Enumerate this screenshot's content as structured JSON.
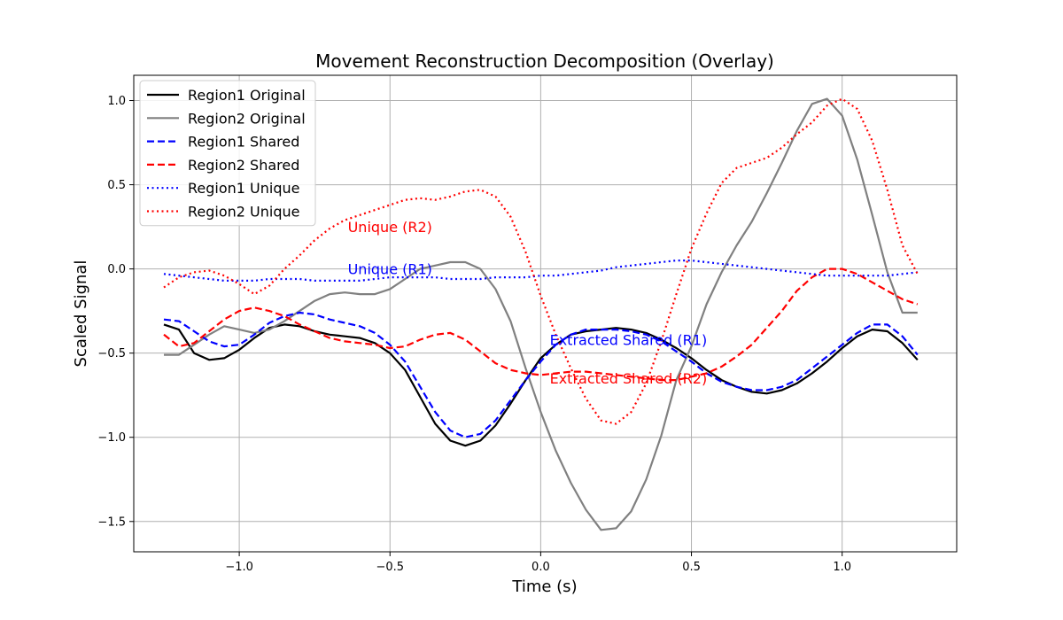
{
  "chart_data": {
    "type": "line",
    "title": "Movement Reconstruction Decomposition (Overlay)",
    "xlabel": "Time (s)",
    "ylabel": "Scaled Signal",
    "xlim": [
      -1.35,
      1.38
    ],
    "ylim": [
      -1.68,
      1.15
    ],
    "xticks": [
      -1.0,
      -0.5,
      0.0,
      0.5,
      1.0
    ],
    "xtick_labels": [
      "−1.0",
      "−0.5",
      "0.0",
      "0.5",
      "1.0"
    ],
    "yticks": [
      -1.5,
      -1.0,
      -0.5,
      0.0,
      0.5,
      1.0
    ],
    "ytick_labels": [
      "−1.5",
      "−1.0",
      "−0.5",
      "0.0",
      "0.5",
      "1.0"
    ],
    "grid": true,
    "legend_position": "top-left",
    "x": [
      -1.25,
      -1.2,
      -1.15,
      -1.1,
      -1.05,
      -1.0,
      -0.95,
      -0.9,
      -0.85,
      -0.8,
      -0.75,
      -0.7,
      -0.65,
      -0.6,
      -0.55,
      -0.5,
      -0.45,
      -0.4,
      -0.35,
      -0.3,
      -0.25,
      -0.2,
      -0.15,
      -0.1,
      -0.05,
      0.0,
      0.05,
      0.1,
      0.15,
      0.2,
      0.25,
      0.3,
      0.35,
      0.4,
      0.45,
      0.5,
      0.55,
      0.6,
      0.65,
      0.7,
      0.75,
      0.8,
      0.85,
      0.9,
      0.95,
      1.0,
      1.05,
      1.1,
      1.15,
      1.2,
      1.25
    ],
    "series": [
      {
        "name": "Region1 Original",
        "color": "#000000",
        "style": "solid",
        "values": [
          -0.33,
          -0.36,
          -0.5,
          -0.54,
          -0.53,
          -0.48,
          -0.41,
          -0.35,
          -0.33,
          -0.34,
          -0.37,
          -0.39,
          -0.4,
          -0.41,
          -0.44,
          -0.5,
          -0.6,
          -0.76,
          -0.92,
          -1.02,
          -1.05,
          -1.02,
          -0.93,
          -0.8,
          -0.66,
          -0.53,
          -0.45,
          -0.39,
          -0.37,
          -0.36,
          -0.35,
          -0.36,
          -0.38,
          -0.42,
          -0.47,
          -0.53,
          -0.6,
          -0.66,
          -0.7,
          -0.73,
          -0.74,
          -0.72,
          -0.68,
          -0.62,
          -0.55,
          -0.47,
          -0.4,
          -0.36,
          -0.37,
          -0.44,
          -0.54
        ]
      },
      {
        "name": "Region2 Original",
        "color": "#808080",
        "style": "solid",
        "values": [
          -0.51,
          -0.51,
          -0.45,
          -0.39,
          -0.34,
          -0.36,
          -0.38,
          -0.36,
          -0.31,
          -0.25,
          -0.19,
          -0.15,
          -0.14,
          -0.15,
          -0.15,
          -0.12,
          -0.06,
          0.0,
          0.02,
          0.04,
          0.04,
          0.0,
          -0.12,
          -0.31,
          -0.59,
          -0.85,
          -1.08,
          -1.27,
          -1.43,
          -1.55,
          -1.54,
          -1.44,
          -1.25,
          -0.99,
          -0.66,
          -0.46,
          -0.21,
          -0.02,
          0.14,
          0.28,
          0.45,
          0.63,
          0.82,
          0.98,
          1.01,
          0.91,
          0.65,
          0.32,
          -0.02,
          -0.26,
          -0.26
        ]
      },
      {
        "name": "Region1 Shared",
        "color": "#0000ff",
        "style": "dashed",
        "values": [
          -0.3,
          -0.31,
          -0.37,
          -0.43,
          -0.46,
          -0.45,
          -0.39,
          -0.32,
          -0.28,
          -0.26,
          -0.27,
          -0.3,
          -0.32,
          -0.34,
          -0.38,
          -0.45,
          -0.55,
          -0.7,
          -0.85,
          -0.96,
          -1.0,
          -0.98,
          -0.9,
          -0.78,
          -0.66,
          -0.55,
          -0.45,
          -0.39,
          -0.36,
          -0.36,
          -0.36,
          -0.37,
          -0.39,
          -0.43,
          -0.49,
          -0.55,
          -0.62,
          -0.67,
          -0.7,
          -0.72,
          -0.72,
          -0.7,
          -0.66,
          -0.59,
          -0.52,
          -0.45,
          -0.38,
          -0.33,
          -0.33,
          -0.4,
          -0.51
        ]
      },
      {
        "name": "Region2 Shared",
        "color": "#ff0000",
        "style": "dashed",
        "values": [
          -0.39,
          -0.46,
          -0.44,
          -0.37,
          -0.3,
          -0.25,
          -0.23,
          -0.25,
          -0.28,
          -0.33,
          -0.37,
          -0.41,
          -0.43,
          -0.44,
          -0.45,
          -0.47,
          -0.46,
          -0.42,
          -0.39,
          -0.38,
          -0.42,
          -0.49,
          -0.56,
          -0.6,
          -0.62,
          -0.63,
          -0.62,
          -0.61,
          -0.61,
          -0.62,
          -0.63,
          -0.64,
          -0.65,
          -0.66,
          -0.66,
          -0.64,
          -0.62,
          -0.58,
          -0.52,
          -0.45,
          -0.35,
          -0.25,
          -0.13,
          -0.05,
          0.0,
          0.0,
          -0.03,
          -0.08,
          -0.13,
          -0.18,
          -0.21
        ]
      },
      {
        "name": "Region1 Unique",
        "color": "#0000ff",
        "style": "dotted",
        "values": [
          -0.03,
          -0.04,
          -0.05,
          -0.06,
          -0.07,
          -0.07,
          -0.07,
          -0.06,
          -0.06,
          -0.06,
          -0.07,
          -0.07,
          -0.07,
          -0.07,
          -0.06,
          -0.05,
          -0.05,
          -0.05,
          -0.05,
          -0.06,
          -0.06,
          -0.06,
          -0.05,
          -0.05,
          -0.05,
          -0.04,
          -0.04,
          -0.03,
          -0.02,
          -0.01,
          0.01,
          0.02,
          0.03,
          0.04,
          0.05,
          0.05,
          0.04,
          0.03,
          0.02,
          0.01,
          0.0,
          -0.01,
          -0.02,
          -0.03,
          -0.04,
          -0.04,
          -0.04,
          -0.04,
          -0.04,
          -0.03,
          -0.02
        ]
      },
      {
        "name": "Region2 Unique",
        "color": "#ff0000",
        "style": "dotted",
        "values": [
          -0.11,
          -0.05,
          -0.02,
          -0.01,
          -0.04,
          -0.09,
          -0.15,
          -0.1,
          0.0,
          0.08,
          0.17,
          0.24,
          0.29,
          0.32,
          0.35,
          0.38,
          0.41,
          0.42,
          0.41,
          0.43,
          0.46,
          0.47,
          0.43,
          0.31,
          0.1,
          -0.16,
          -0.39,
          -0.59,
          -0.77,
          -0.9,
          -0.92,
          -0.85,
          -0.68,
          -0.43,
          -0.15,
          0.12,
          0.33,
          0.51,
          0.6,
          0.63,
          0.66,
          0.72,
          0.8,
          0.87,
          0.97,
          1.01,
          0.95,
          0.76,
          0.47,
          0.14,
          -0.03
        ]
      }
    ],
    "annotations": [
      {
        "text": "Unique (R2)",
        "x": -0.64,
        "y": 0.25,
        "color": "#ff0000"
      },
      {
        "text": "Unique (R1)",
        "x": -0.64,
        "y": 0.0,
        "color": "#0000ff"
      },
      {
        "text": "Extracted Shared (R1)",
        "x": 0.03,
        "y": -0.42,
        "color": "#0000ff"
      },
      {
        "text": "Extracted Shared (R2)",
        "x": 0.03,
        "y": -0.65,
        "color": "#ff0000"
      }
    ]
  }
}
